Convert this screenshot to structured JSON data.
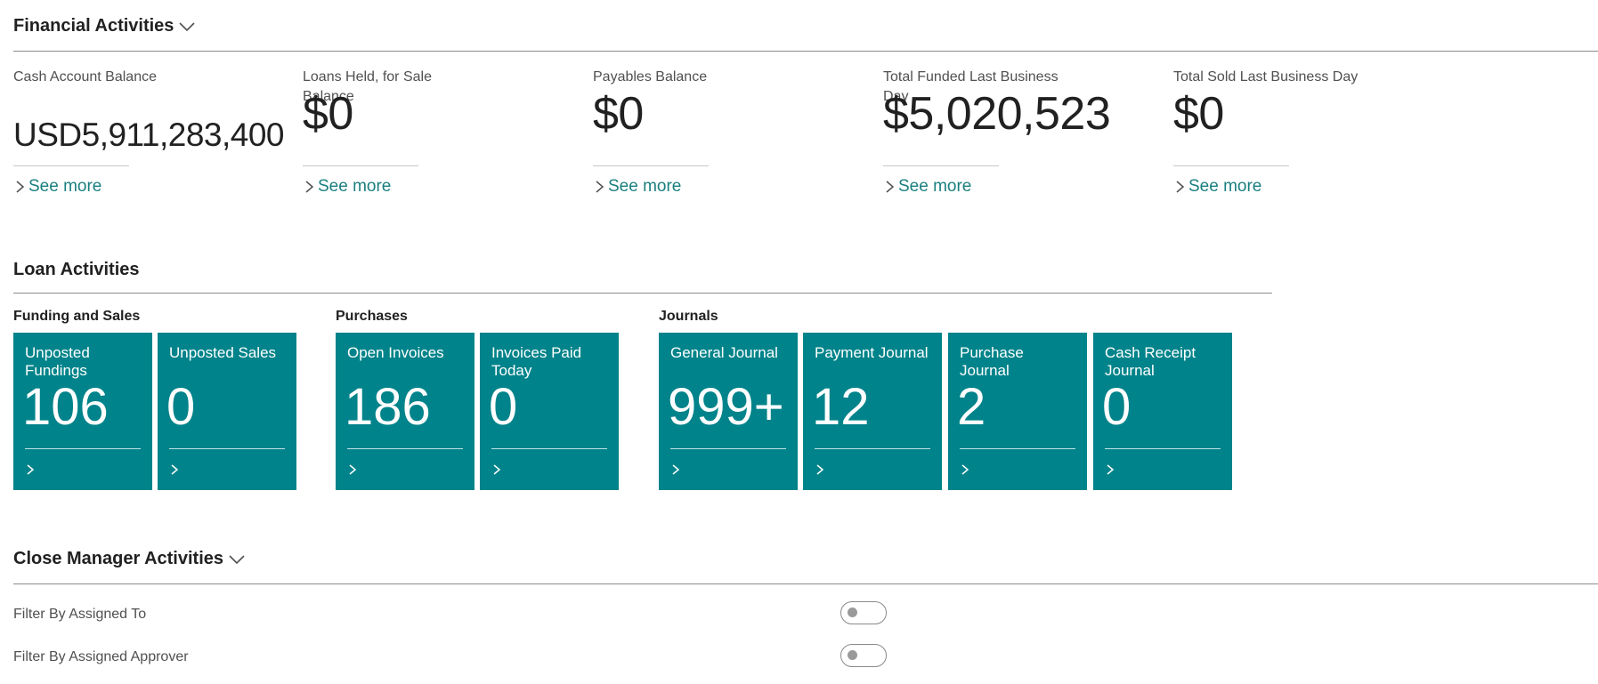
{
  "financial": {
    "title": "Financial Activities",
    "cues": [
      {
        "label": "Cash Account Balance",
        "value": "USD5,911,283,400",
        "link": "See more"
      },
      {
        "label": "Loans Held, for Sale Balance",
        "value": "$0",
        "link": "See more"
      },
      {
        "label": "Payables Balance",
        "value": "$0",
        "link": "See more"
      },
      {
        "label": "Total Funded Last Business Day",
        "value": "$5,020,523",
        "link": "See more"
      },
      {
        "label": "Total Sold Last Business Day",
        "value": "$0",
        "link": "See more"
      }
    ]
  },
  "loan": {
    "title": "Loan Activities",
    "groups": [
      {
        "label": "Funding and Sales",
        "tiles": [
          {
            "label": "Unposted Fundings",
            "value": "106"
          },
          {
            "label": "Unposted Sales",
            "value": "0"
          }
        ]
      },
      {
        "label": "Purchases",
        "tiles": [
          {
            "label": "Open Invoices",
            "value": "186"
          },
          {
            "label": "Invoices Paid Today",
            "value": "0"
          }
        ]
      },
      {
        "label": "Journals",
        "tiles": [
          {
            "label": "General Journal",
            "value": "999+"
          },
          {
            "label": "Payment Journal",
            "value": "12"
          },
          {
            "label": "Purchase Journal",
            "value": "2"
          },
          {
            "label": "Cash Receipt Journal",
            "value": "0"
          }
        ]
      }
    ]
  },
  "close_manager": {
    "title": "Close Manager Activities",
    "filters": [
      {
        "label": "Filter By Assigned To",
        "on": false
      },
      {
        "label": "Filter By Assigned Approver",
        "on": false
      }
    ]
  },
  "colors": {
    "tile": "#00838a",
    "link": "#1b7f7f"
  },
  "icons": {
    "collapse": "chevron-down-icon",
    "see_more": "chevron-right-icon",
    "tile_drill": "chevron-right-icon"
  }
}
